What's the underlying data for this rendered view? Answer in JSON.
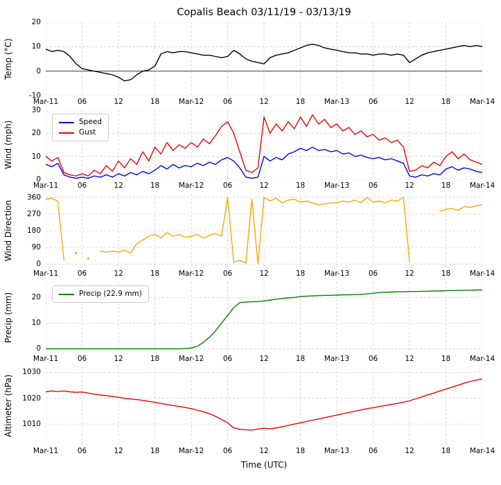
{
  "title": "Copalis Beach 03/11/19 - 03/13/19",
  "xlabel": "Time (UTC)",
  "x_ticks": [
    "Mar-11",
    "06",
    "12",
    "18",
    "Mar-12",
    "06",
    "12",
    "18",
    "Mar-13",
    "06",
    "12",
    "18",
    "Mar-14"
  ],
  "x_tick_hours": [
    0,
    6,
    12,
    18,
    24,
    30,
    36,
    42,
    48,
    54,
    60,
    66,
    72
  ],
  "xlim": [
    0,
    72
  ],
  "x_hours": [
    0,
    1,
    2,
    3,
    4,
    5,
    6,
    7,
    8,
    9,
    10,
    11,
    12,
    13,
    14,
    15,
    16,
    17,
    18,
    19,
    20,
    21,
    22,
    23,
    24,
    25,
    26,
    27,
    28,
    29,
    30,
    31,
    32,
    33,
    34,
    35,
    36,
    37,
    38,
    39,
    40,
    41,
    42,
    43,
    44,
    45,
    46,
    47,
    48,
    49,
    50,
    51,
    52,
    53,
    54,
    55,
    56,
    57,
    58,
    59,
    60,
    61,
    62,
    63,
    64,
    65,
    66,
    67,
    68,
    69,
    70,
    71,
    72
  ],
  "grid": "on",
  "chart_data": [
    {
      "type": "line",
      "ylabel": "Temp (°C)",
      "ylim": [
        -10,
        20
      ],
      "yticks": [
        -10,
        0,
        10,
        20
      ],
      "hline": 0,
      "series": [
        {
          "name": "Temp",
          "color": "#000000",
          "values": [
            9,
            8,
            8.5,
            8,
            6,
            3,
            1,
            0.5,
            0,
            -0.5,
            -1,
            -1.5,
            -2.5,
            -4,
            -3.5,
            -1.5,
            0,
            0.5,
            2,
            7,
            8,
            7.5,
            8,
            8,
            7.5,
            7,
            6.5,
            6.5,
            6,
            5.5,
            6,
            8.5,
            7,
            5,
            4,
            3.5,
            3,
            5.5,
            6.5,
            7,
            7.5,
            8.5,
            9.5,
            10.5,
            11,
            10.5,
            9.5,
            9,
            8.5,
            8,
            7.5,
            7.5,
            7,
            7,
            6.5,
            7,
            7,
            6.5,
            7,
            6.5,
            3.5,
            5,
            6.5,
            7.5,
            8,
            8.5,
            9,
            9.5,
            10,
            10.5,
            10,
            10.5,
            10
          ]
        }
      ]
    },
    {
      "type": "line",
      "ylabel": "Wind (mph)",
      "ylim": [
        0,
        30
      ],
      "yticks": [
        0,
        10,
        20,
        30
      ],
      "legend_position": "upper left",
      "series": [
        {
          "name": "Speed",
          "color": "#0000ee",
          "values": [
            6.5,
            5.5,
            7,
            2,
            1,
            0.5,
            1,
            0.5,
            1.5,
            1,
            2,
            1,
            2.5,
            1.5,
            3,
            2,
            3.5,
            2.5,
            4,
            6,
            4.5,
            6.5,
            5,
            6,
            5.5,
            7,
            6,
            7.5,
            6.5,
            8.5,
            9.5,
            8,
            5,
            1,
            0.5,
            1,
            10,
            8,
            9.5,
            8.5,
            11,
            12,
            13.5,
            12.5,
            14,
            12.5,
            13,
            12,
            12.5,
            11,
            11.5,
            10,
            10.5,
            9.5,
            9,
            9.5,
            8.5,
            9,
            8,
            7,
            1.5,
            1,
            2,
            1.5,
            2.5,
            2,
            4.5,
            5.5,
            4,
            5,
            4.5,
            3.5,
            3
          ]
        },
        {
          "name": "Gust",
          "color": "#ee0000",
          "values": [
            10,
            8,
            9.5,
            3,
            2,
            1.5,
            2.5,
            1.5,
            4,
            2.5,
            6,
            3.5,
            8,
            5,
            9,
            6.5,
            12,
            8,
            14,
            11,
            16,
            12.5,
            15,
            13.5,
            16,
            14,
            17.5,
            15.5,
            19,
            23,
            25,
            20,
            12,
            4,
            3,
            5,
            27,
            20,
            24,
            21,
            25,
            22,
            27,
            23,
            28,
            24,
            26,
            22.5,
            24,
            21,
            22.5,
            19.5,
            21,
            18.5,
            19.5,
            17,
            18,
            16,
            17,
            14,
            3.5,
            4,
            6,
            5,
            7.5,
            6,
            10,
            12,
            9,
            11,
            8.5,
            7.5,
            6.5
          ]
        }
      ]
    },
    {
      "type": "line",
      "ylabel": "Wind Direction",
      "ylim": [
        -18,
        378
      ],
      "yticks": [
        0,
        90,
        180,
        270,
        360
      ],
      "series": [
        {
          "name": "Direction",
          "color": "#ffa500",
          "values": [
            350,
            355,
            340,
            20,
            null,
            60,
            null,
            30,
            null,
            70,
            65,
            70,
            65,
            75,
            60,
            110,
            130,
            150,
            160,
            140,
            170,
            150,
            160,
            145,
            150,
            160,
            140,
            155,
            165,
            150,
            360,
            10,
            20,
            5,
            350,
            0,
            360,
            340,
            355,
            330,
            345,
            350,
            335,
            340,
            330,
            320,
            325,
            330,
            330,
            340,
            335,
            345,
            330,
            360,
            335,
            340,
            330,
            345,
            340,
            360,
            10,
            null,
            null,
            null,
            null,
            285,
            295,
            300,
            290,
            310,
            305,
            315,
            320
          ]
        }
      ]
    },
    {
      "type": "line",
      "ylabel": "Precip (mm)",
      "ylim": [
        -1.5,
        26
      ],
      "yticks": [
        0,
        10,
        20
      ],
      "legend_position": "upper left",
      "legend_label": "Precip (22.9 mm)",
      "total_mm": 22.9,
      "series": [
        {
          "name": "Precip",
          "color": "#008000",
          "values": [
            0,
            0,
            0,
            0,
            0,
            0,
            0,
            0,
            0,
            0,
            0,
            0,
            0,
            0,
            0,
            0,
            0,
            0,
            0,
            0,
            0,
            0,
            0,
            0.1,
            0.3,
            1,
            2.5,
            4.5,
            7,
            10,
            13,
            16,
            18,
            18.2,
            18.3,
            18.4,
            18.6,
            19,
            19.3,
            19.6,
            19.8,
            20,
            20.3,
            20.5,
            20.6,
            20.7,
            20.8,
            20.8,
            20.9,
            21,
            21,
            21.1,
            21.2,
            21.4,
            21.6,
            21.9,
            22,
            22.1,
            22.2,
            22.2,
            22.3,
            22.3,
            22.4,
            22.4,
            22.5,
            22.5,
            22.6,
            22.7,
            22.7,
            22.8,
            22.8,
            22.9,
            22.9
          ]
        }
      ]
    },
    {
      "type": "line",
      "ylabel": "Altimeter (hPa)",
      "ylim": [
        1002,
        1032
      ],
      "yticks": [
        1010,
        1020,
        1030
      ],
      "series": [
        {
          "name": "Altimeter",
          "color": "#ee0000",
          "values": [
            1022.5,
            1022.8,
            1022.6,
            1022.8,
            1022.5,
            1022.3,
            1022.4,
            1022,
            1021.6,
            1021.3,
            1021,
            1020.7,
            1020.4,
            1020,
            1019.7,
            1019.5,
            1019.2,
            1018.8,
            1018.4,
            1018,
            1017.6,
            1017.2,
            1016.8,
            1016.4,
            1016,
            1015.4,
            1014.8,
            1014,
            1013,
            1011.8,
            1010.5,
            1008.5,
            1008,
            1007.8,
            1007.7,
            1008.1,
            1008.4,
            1008.2,
            1008.5,
            1009,
            1009.5,
            1010,
            1010.5,
            1011,
            1011.5,
            1012,
            1012.5,
            1013,
            1013.5,
            1014,
            1014.5,
            1015,
            1015.5,
            1016,
            1016.3,
            1016.8,
            1017.2,
            1017.6,
            1018,
            1018.5,
            1019,
            1019.8,
            1020.5,
            1021.3,
            1022,
            1022.8,
            1023.5,
            1024.3,
            1025,
            1025.8,
            1026.5,
            1027,
            1027.5
          ]
        }
      ]
    }
  ]
}
